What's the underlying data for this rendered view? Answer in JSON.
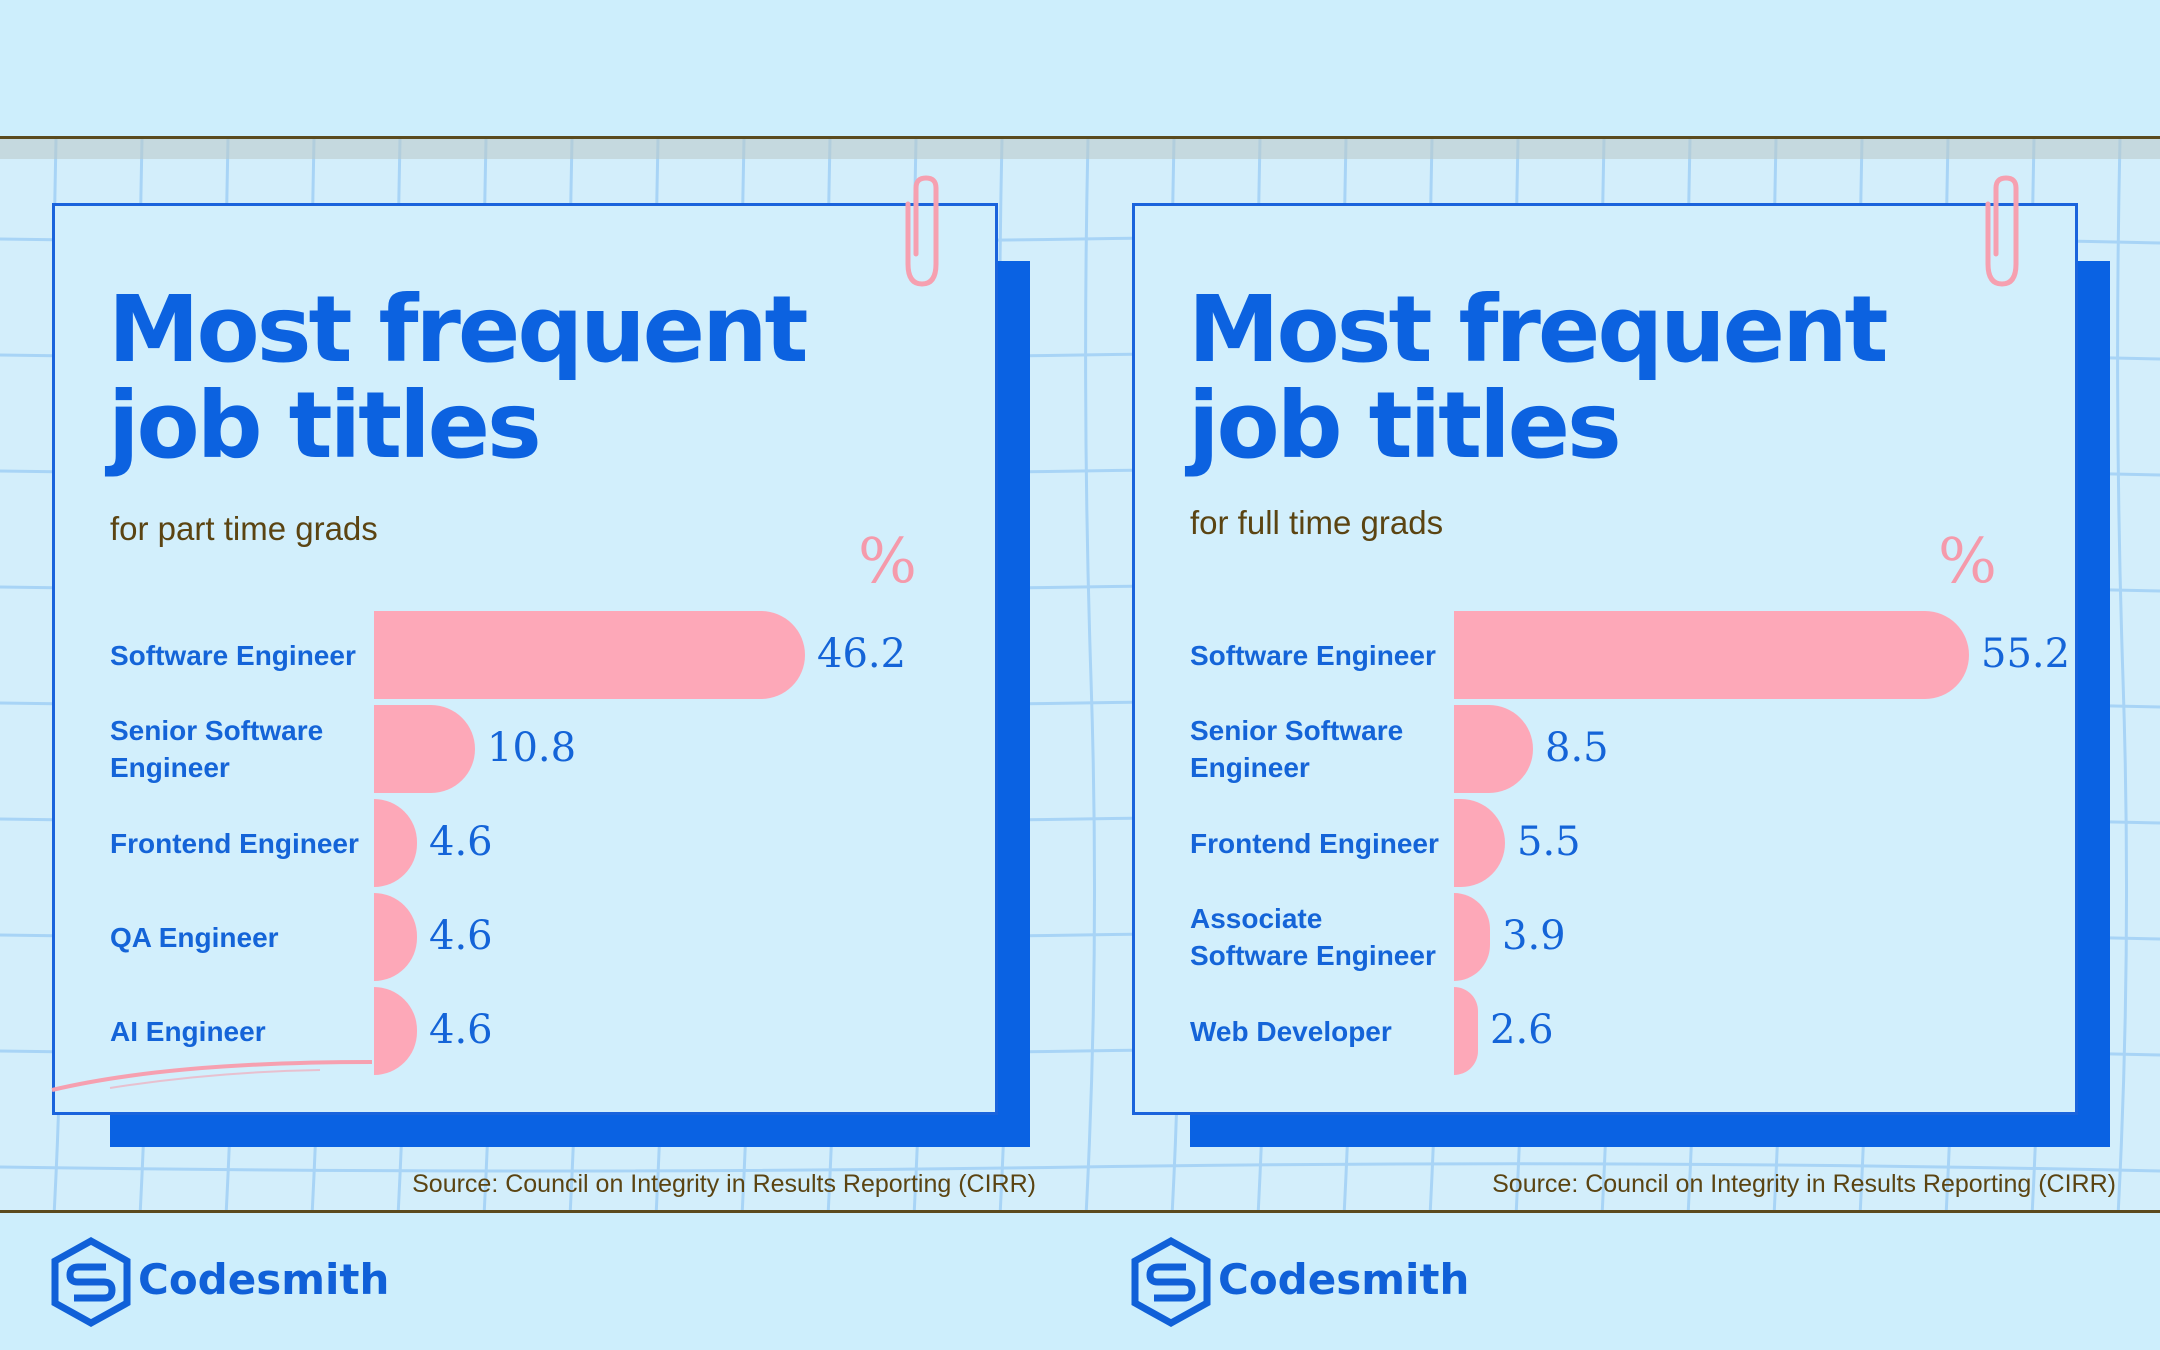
{
  "panels": [
    {
      "title_line1": "Most frequent",
      "title_line2": "job titles",
      "subtitle": "for part time grads",
      "unit": "%",
      "source": "Source: Council on Integrity in Results Reporting (CIRR)",
      "brand": "Codesmith"
    },
    {
      "title_line1": "Most frequent",
      "title_line2": "job titles",
      "subtitle": "for full time grads",
      "unit": "%",
      "source": "Source: Council on Integrity in Results Reporting (CIRR)",
      "brand": "Codesmith"
    }
  ],
  "chart_data": [
    {
      "type": "bar",
      "orientation": "horizontal",
      "title": "Most frequent job titles",
      "subtitle": "for part time grads",
      "unit": "%",
      "categories": [
        "Software Engineer",
        "Senior Software Engineer",
        "Frontend Engineer",
        "QA Engineer",
        "AI Engineer"
      ],
      "category_display": [
        [
          "Software Engineer"
        ],
        [
          "Senior Software",
          "Engineer"
        ],
        [
          "Frontend Engineer"
        ],
        [
          "QA Engineer"
        ],
        [
          "AI Engineer"
        ]
      ],
      "values": [
        46.2,
        10.8,
        4.6,
        4.6,
        4.6
      ],
      "value_labels": [
        "46.2",
        "10.8",
        "4.6",
        "4.6",
        "4.6"
      ],
      "xlim": [
        0,
        60
      ],
      "grid": false,
      "bar_color": "#fda8b8"
    },
    {
      "type": "bar",
      "orientation": "horizontal",
      "title": "Most frequent job titles",
      "subtitle": "for full time grads",
      "unit": "%",
      "categories": [
        "Software Engineer",
        "Senior Software Engineer",
        "Frontend Engineer",
        "Associate Software Engineer",
        "Web Developer"
      ],
      "category_display": [
        [
          "Software Engineer"
        ],
        [
          "Senior Software",
          "Engineer"
        ],
        [
          "Frontend Engineer"
        ],
        [
          "Associate",
          "Software Engineer"
        ],
        [
          "Web Developer"
        ]
      ],
      "values": [
        55.2,
        8.5,
        5.5,
        3.9,
        2.6
      ],
      "value_labels": [
        "55.2",
        "8.5",
        "5.5",
        "3.9",
        "2.6"
      ],
      "xlim": [
        0,
        60
      ],
      "grid": false,
      "bar_color": "#fda8b8"
    }
  ],
  "colors": {
    "background": "#cdeefc",
    "accent_blue": "#0c62e0",
    "bar_pink": "#fda8b8",
    "text_brown": "#5b4412"
  },
  "icons": [
    "paperclip-icon",
    "codesmith-logo-icon"
  ]
}
